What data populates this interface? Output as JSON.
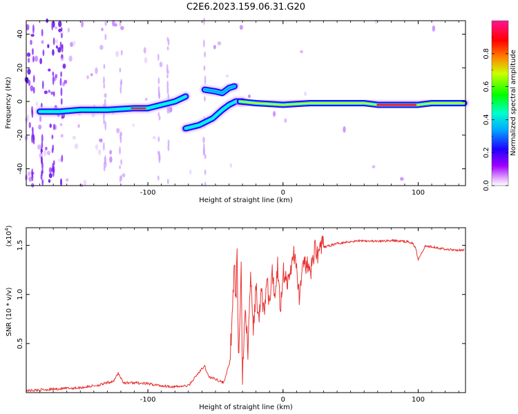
{
  "title": "C2E6.2023.159.06.31.G20",
  "chart_data": [
    {
      "type": "heatmap",
      "xlabel": "Height of straight line (km)",
      "ylabel": "Frequency (Hz)",
      "xlim": [
        -190,
        135
      ],
      "ylim": [
        -50,
        48
      ],
      "xticks": [
        -100,
        0,
        100
      ],
      "yticks": [
        -40,
        -20,
        0,
        20,
        40
      ],
      "colorbar": {
        "label": "Normalized spectral amplitude",
        "range": [
          0.0,
          1.0
        ],
        "ticks": [
          "0.0",
          "0.2",
          "0.4",
          "0.6",
          "0.8"
        ],
        "colormap": [
          "#ffffff",
          "#ff00ff",
          "#7f00ff",
          "#0000ff",
          "#00ffff",
          "#00ff00",
          "#ffff00",
          "#ff7f00",
          "#ff0000",
          "#ff1493"
        ]
      },
      "ridges": [
        {
          "x": [
            -180,
            -165,
            -150,
            -130,
            -110,
            -100,
            -90,
            -80,
            -72
          ],
          "y": [
            -6,
            -6,
            -5,
            -5,
            -4,
            -4,
            -2,
            0,
            3
          ],
          "amplitude": 0.45
        },
        {
          "x": [
            -58,
            -50,
            -45,
            -40,
            -36
          ],
          "y": [
            7,
            6,
            5,
            8,
            9
          ],
          "amplitude": 0.4
        },
        {
          "x": [
            -72,
            -62,
            -52,
            -45,
            -40,
            -35,
            -30
          ],
          "y": [
            -16,
            -14,
            -10,
            -5,
            -2,
            0,
            0
          ],
          "amplitude": 0.5
        },
        {
          "x": [
            -32,
            -20,
            0,
            20,
            40,
            60,
            70,
            80,
            90,
            100,
            110,
            120,
            134
          ],
          "y": [
            0,
            -1,
            -2,
            -1,
            -1,
            -1,
            -2,
            -2,
            -2,
            -2,
            -1,
            -1,
            -1
          ],
          "amplitude": 0.7
        }
      ]
    },
    {
      "type": "line",
      "xlabel": "Height of straight line (km)",
      "ylabel": "SNR (10 * v/v)",
      "yscale_label": "(x10",
      "yscale_exp": "4",
      "yscale_close": ")",
      "xlim": [
        -190,
        135
      ],
      "ylim": [
        0,
        16800
      ],
      "xticks": [
        -100,
        0,
        100
      ],
      "yticks": [
        {
          "value": 5000,
          "label": "0.5"
        },
        {
          "value": 10000,
          "label": "1.0"
        },
        {
          "value": 15000,
          "label": "1.5"
        }
      ],
      "color": "#e83232",
      "series": [
        {
          "x": [
            -190,
            -170,
            -150,
            -135,
            -125,
            -122,
            -118,
            -110,
            -100,
            -90,
            -80,
            -70,
            -62,
            -58,
            -55,
            -50,
            -44,
            -40,
            -38,
            -36,
            -35,
            -34,
            -33,
            -31,
            -30,
            -28,
            -26,
            -24,
            -22,
            -20,
            -18,
            -16,
            -14,
            -12,
            -10,
            -8,
            -6,
            -4,
            -2,
            0,
            4,
            8,
            12,
            16,
            20,
            24,
            26,
            28,
            30,
            35,
            40,
            50,
            60,
            70,
            80,
            90,
            95,
            98,
            100,
            105,
            110,
            120,
            134
          ],
          "y": [
            200,
            350,
            500,
            800,
            1200,
            2000,
            1000,
            1000,
            900,
            700,
            600,
            700,
            2100,
            2700,
            1600,
            1400,
            1000,
            2800,
            6000,
            13500,
            9000,
            13800,
            3000,
            12500,
            1500,
            9000,
            4000,
            12000,
            6000,
            11000,
            7000,
            10500,
            8000,
            11500,
            9000,
            12000,
            10000,
            13000,
            8500,
            12500,
            11000,
            14500,
            10000,
            13500,
            12000,
            15000,
            14000,
            15200,
            14800,
            15000,
            15200,
            15400,
            15500,
            15400,
            15500,
            15400,
            15300,
            14800,
            13600,
            14900,
            14900,
            14600,
            14500
          ]
        }
      ]
    }
  ]
}
